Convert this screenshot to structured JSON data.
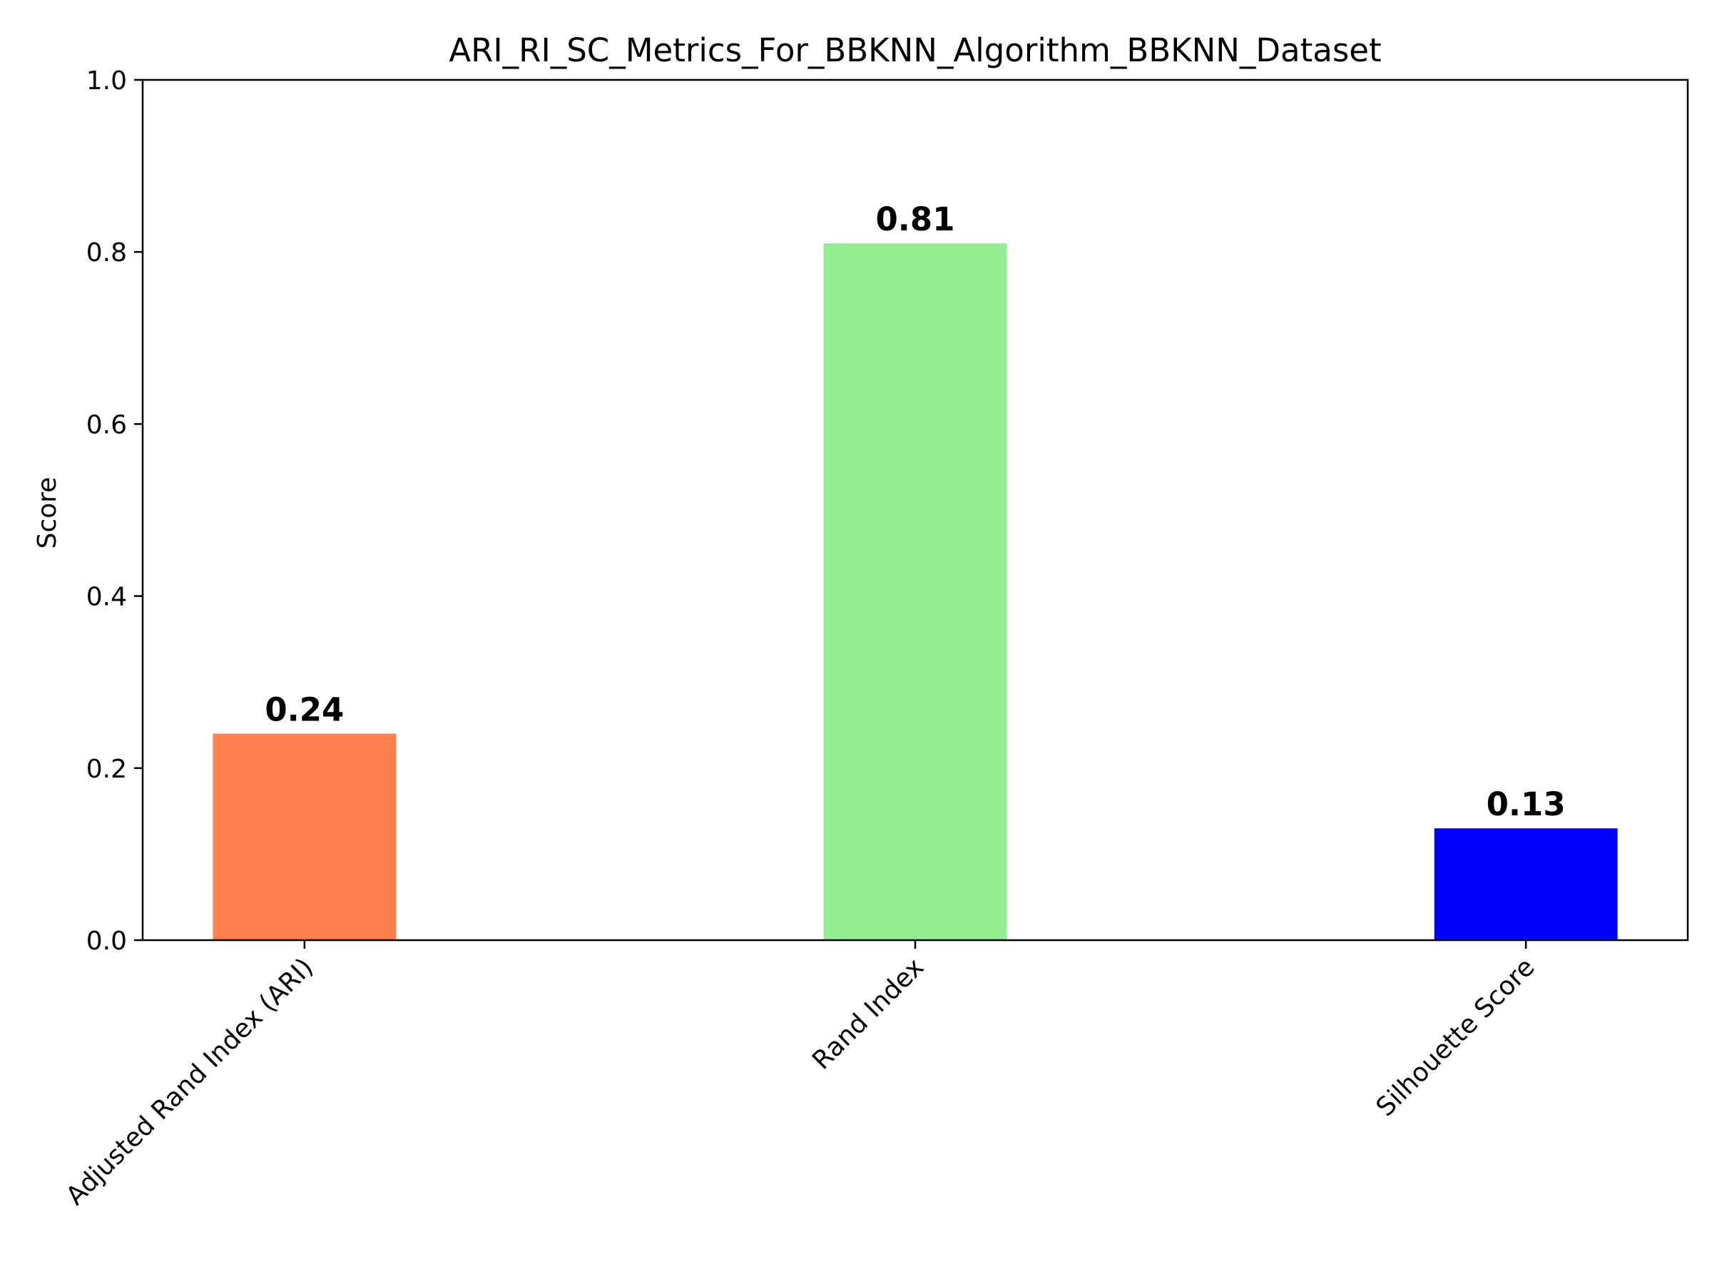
{
  "chart_data": {
    "type": "bar",
    "title": "ARI_RI_SC_Metrics_For_BBKNN_Algorithm_BBKNN_Dataset",
    "xlabel": "",
    "ylabel": "Score",
    "categories": [
      "Adjusted Rand Index (ARI)",
      "Rand Index",
      "Silhouette Score"
    ],
    "values": [
      0.24,
      0.81,
      0.13
    ],
    "data_labels": [
      "0.24",
      "0.81",
      "0.13"
    ],
    "colors": [
      "#ff7f50",
      "#90ee90",
      "#0000ff"
    ],
    "ylim": [
      0,
      1.0
    ],
    "yticks": [
      "0.0",
      "0.2",
      "0.4",
      "0.6",
      "0.8",
      "1.0"
    ],
    "grid": false,
    "legend": "none"
  }
}
